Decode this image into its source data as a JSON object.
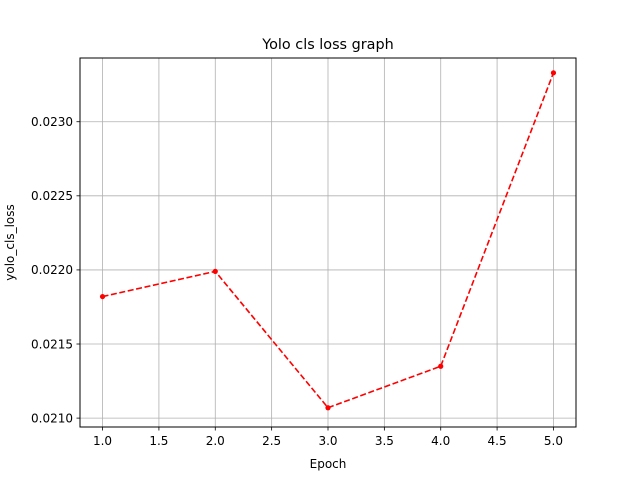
{
  "chart_data": {
    "type": "line",
    "title": "Yolo cls loss graph",
    "xlabel": "Epoch",
    "ylabel": "yolo_cls_loss",
    "x": [
      1,
      2,
      3,
      4,
      5
    ],
    "series": [
      {
        "values": [
          0.02182,
          0.02199,
          0.02107,
          0.02135,
          0.02333
        ],
        "color": "#ff0000",
        "linestyle": "dashed",
        "marker": "point"
      }
    ],
    "xlim": [
      0.8,
      5.2
    ],
    "ylim": [
      0.02094,
      0.02343
    ],
    "xticks": [
      "1.0",
      "1.5",
      "2.0",
      "2.5",
      "3.0",
      "3.5",
      "4.0",
      "4.5",
      "5.0"
    ],
    "yticks": [
      "0.0210",
      "0.0215",
      "0.0220",
      "0.0225",
      "0.0230"
    ],
    "grid": true
  }
}
